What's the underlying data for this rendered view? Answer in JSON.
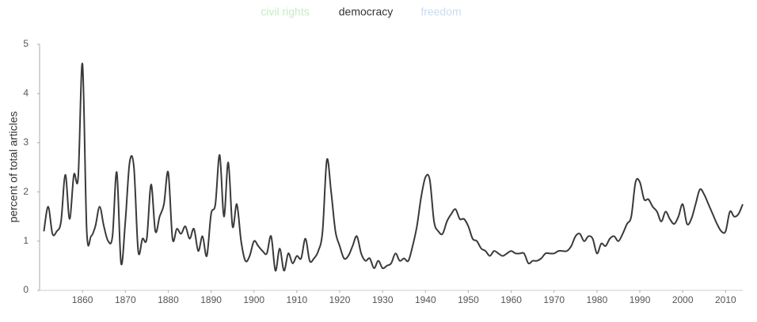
{
  "chart_data": {
    "type": "line",
    "y_label": "percent of total articles",
    "legend": [
      {
        "name": "civil rights",
        "color": "#c6ecc6"
      },
      {
        "name": "democracy",
        "color": "#333333"
      },
      {
        "name": "freedom",
        "color": "#c9dcf2"
      }
    ],
    "x": [
      1851,
      1852,
      1853,
      1854,
      1855,
      1856,
      1857,
      1858,
      1859,
      1860,
      1861,
      1862,
      1863,
      1864,
      1865,
      1866,
      1867,
      1868,
      1869,
      1870,
      1871,
      1872,
      1873,
      1874,
      1875,
      1876,
      1877,
      1878,
      1879,
      1880,
      1881,
      1882,
      1883,
      1884,
      1885,
      1886,
      1887,
      1888,
      1889,
      1890,
      1891,
      1892,
      1893,
      1894,
      1895,
      1896,
      1897,
      1898,
      1899,
      1900,
      1901,
      1902,
      1903,
      1904,
      1905,
      1906,
      1907,
      1908,
      1909,
      1910,
      1911,
      1912,
      1913,
      1914,
      1915,
      1916,
      1917,
      1918,
      1919,
      1920,
      1921,
      1922,
      1923,
      1924,
      1925,
      1926,
      1927,
      1928,
      1929,
      1930,
      1931,
      1932,
      1933,
      1934,
      1935,
      1936,
      1937,
      1938,
      1939,
      1940,
      1941,
      1942,
      1943,
      1944,
      1945,
      1946,
      1947,
      1948,
      1949,
      1950,
      1951,
      1952,
      1953,
      1954,
      1955,
      1956,
      1957,
      1958,
      1959,
      1960,
      1961,
      1962,
      1963,
      1964,
      1965,
      1966,
      1967,
      1968,
      1969,
      1970,
      1971,
      1972,
      1973,
      1974,
      1975,
      1976,
      1977,
      1978,
      1979,
      1980,
      1981,
      1982,
      1983,
      1984,
      1985,
      1986,
      1987,
      1988,
      1989,
      1990,
      1991,
      1992,
      1993,
      1994,
      1995,
      1996,
      1997,
      1998,
      1999,
      2000,
      2001,
      2002,
      2003,
      2004,
      2005,
      2006,
      2007,
      2008,
      2009,
      2010,
      2011,
      2012,
      2013,
      2014
    ],
    "series": [
      {
        "name": "democracy",
        "color": "#3a3a3a",
        "values": [
          1.2,
          1.7,
          1.15,
          1.2,
          1.4,
          2.35,
          1.45,
          2.35,
          2.3,
          4.6,
          1.2,
          1.1,
          1.3,
          1.7,
          1.3,
          1.0,
          1.1,
          2.4,
          0.55,
          1.4,
          2.6,
          2.5,
          0.8,
          1.05,
          1.05,
          2.15,
          1.2,
          1.5,
          1.75,
          2.4,
          1.05,
          1.25,
          1.15,
          1.3,
          1.05,
          1.25,
          0.8,
          1.1,
          0.7,
          1.55,
          1.75,
          2.75,
          1.5,
          2.6,
          1.3,
          1.75,
          1.0,
          0.6,
          0.7,
          1.0,
          0.9,
          0.8,
          0.75,
          1.1,
          0.4,
          0.85,
          0.4,
          0.75,
          0.55,
          0.7,
          0.65,
          1.05,
          0.6,
          0.65,
          0.8,
          1.2,
          2.65,
          2.0,
          1.2,
          0.9,
          0.65,
          0.7,
          0.9,
          1.1,
          0.75,
          0.6,
          0.65,
          0.45,
          0.6,
          0.45,
          0.5,
          0.55,
          0.75,
          0.6,
          0.65,
          0.6,
          0.9,
          1.3,
          1.9,
          2.3,
          2.25,
          1.4,
          1.2,
          1.15,
          1.4,
          1.55,
          1.65,
          1.45,
          1.45,
          1.3,
          1.05,
          1.0,
          0.85,
          0.8,
          0.7,
          0.8,
          0.75,
          0.7,
          0.75,
          0.8,
          0.75,
          0.75,
          0.75,
          0.55,
          0.6,
          0.6,
          0.65,
          0.75,
          0.75,
          0.75,
          0.8,
          0.8,
          0.8,
          0.9,
          1.1,
          1.15,
          1.0,
          1.1,
          1.05,
          0.75,
          0.95,
          0.9,
          1.05,
          1.1,
          1.0,
          1.15,
          1.35,
          1.5,
          2.2,
          2.2,
          1.85,
          1.85,
          1.7,
          1.6,
          1.4,
          1.6,
          1.45,
          1.35,
          1.5,
          1.75,
          1.35,
          1.45,
          1.75,
          2.05,
          1.95,
          1.75,
          1.55,
          1.35,
          1.2,
          1.2,
          1.6,
          1.5,
          1.55,
          1.75
        ]
      }
    ],
    "xlim": [
      1850,
      2014
    ],
    "xticks": [
      1860,
      1870,
      1880,
      1890,
      1900,
      1910,
      1920,
      1930,
      1940,
      1950,
      1960,
      1970,
      1980,
      1990,
      2000,
      2010
    ],
    "ylim": [
      0,
      5
    ],
    "yticks": [
      0,
      1,
      2,
      3,
      4,
      5
    ],
    "grid": false
  }
}
